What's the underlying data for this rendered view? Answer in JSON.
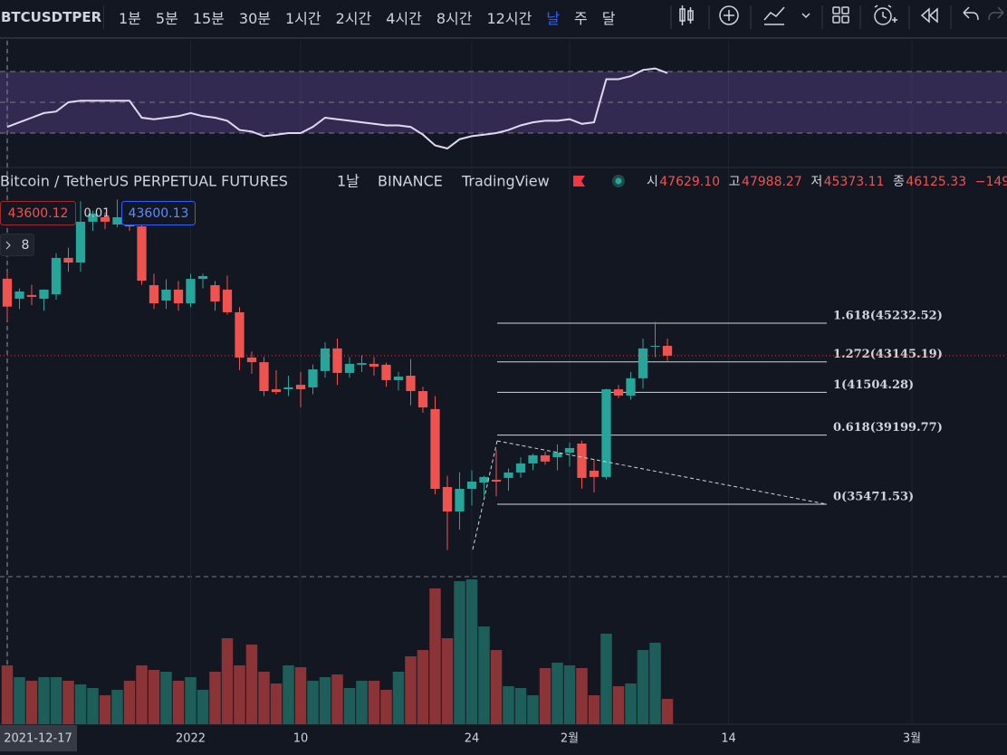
{
  "toolbar": {
    "symbol": "BTCUSDTPER",
    "intervals": [
      "1분",
      "5분",
      "15분",
      "30분",
      "1시간",
      "2시간",
      "4시간",
      "8시간",
      "12시간",
      "날",
      "주",
      "달"
    ],
    "active": "날"
  },
  "legend": {
    "name": "Bitcoin / TetherUS PERPETUAL FUTURES",
    "interval": "1날",
    "exchange": "BINANCE",
    "source": "TradingView",
    "ohlc": [
      {
        "label": "시",
        "value": "47629.10"
      },
      {
        "label": "고",
        "value": "47988.27"
      },
      {
        "label": "저",
        "value": "45373.11"
      },
      {
        "label": "종",
        "value": "46125.33"
      }
    ],
    "change": "−149"
  },
  "order_panel": {
    "sell": "43600.12",
    "spread": "0.01",
    "buy": "43600.13",
    "lines": "8"
  },
  "chart_data": {
    "type": "candlestick",
    "up_color": "#26a69a",
    "down_color": "#ef5350",
    "x": [
      "2021-12-17",
      "2021-12-18",
      "2021-12-19",
      "2021-12-20",
      "2021-12-21",
      "2021-12-22",
      "2021-12-23",
      "2021-12-24",
      "2021-12-25",
      "2021-12-26",
      "2021-12-27",
      "2021-12-28",
      "2021-12-29",
      "2021-12-30",
      "2021-12-31",
      "2022-01-01",
      "2022-01-02",
      "2022-01-03",
      "2022-01-04",
      "2022-01-05",
      "2022-01-06",
      "2022-01-07",
      "2022-01-08",
      "2022-01-09",
      "2022-01-10",
      "2022-01-11",
      "2022-01-12",
      "2022-01-13",
      "2022-01-14",
      "2022-01-15",
      "2022-01-16",
      "2022-01-17",
      "2022-01-18",
      "2022-01-19",
      "2022-01-20",
      "2022-01-21",
      "2022-01-22",
      "2022-01-23",
      "2022-01-24",
      "2022-01-25",
      "2022-01-26",
      "2022-01-27",
      "2022-01-28",
      "2022-01-29",
      "2022-01-30",
      "2022-01-31",
      "2022-02-01",
      "2022-02-02",
      "2022-02-03",
      "2022-02-04",
      "2022-02-05",
      "2022-02-06",
      "2022-02-07",
      "2022-02-08",
      "2022-02-09"
    ],
    "open": [
      47629,
      46550,
      46750,
      46550,
      46790,
      48750,
      48500,
      50700,
      50940,
      50550,
      50940,
      50450,
      47280,
      46450,
      47040,
      46300,
      47620,
      47280,
      47040,
      45820,
      43380,
      43130,
      41670,
      41670,
      41910,
      41770,
      42650,
      43870,
      42550,
      42990,
      43040,
      42990,
      42160,
      42400,
      41570,
      40600,
      36400,
      35080,
      36300,
      36640,
      36790,
      36890,
      37180,
      37670,
      38110,
      38010,
      38250,
      38740,
      37280,
      36940,
      41670,
      41330,
      42260,
      43960,
      44010
    ],
    "high": [
      47988,
      47100,
      47300,
      47050,
      49000,
      49300,
      51800,
      51300,
      51200,
      51900,
      51300,
      50500,
      47900,
      47600,
      47500,
      47900,
      47900,
      47500,
      47800,
      46100,
      43700,
      43400,
      42700,
      42400,
      42600,
      43000,
      44200,
      44400,
      43400,
      43500,
      43400,
      43100,
      42600,
      43300,
      41800,
      41300,
      37000,
      37200,
      37300,
      37000,
      38400,
      37400,
      38000,
      38200,
      38300,
      38700,
      38800,
      38900,
      37900,
      41700,
      41900,
      42600,
      44400,
      45300,
      44400
    ],
    "low": [
      45373,
      46000,
      46200,
      45900,
      46500,
      48000,
      48000,
      50200,
      50300,
      50400,
      50200,
      47300,
      46000,
      46000,
      45900,
      46100,
      47100,
      45900,
      45700,
      42700,
      42500,
      41300,
      41400,
      41300,
      40700,
      41400,
      42300,
      41900,
      42300,
      42600,
      42400,
      41800,
      41600,
      40800,
      40400,
      36000,
      33000,
      34100,
      35400,
      35900,
      35900,
      36200,
      36900,
      37300,
      37600,
      37300,
      37500,
      36300,
      36100,
      36800,
      41200,
      41100,
      41700,
      43400,
      43200
    ],
    "close": [
      46125,
      46940,
      46650,
      47040,
      48750,
      48500,
      50700,
      51140,
      50700,
      50940,
      50450,
      47520,
      46300,
      47040,
      46300,
      47620,
      47770,
      46400,
      45820,
      43380,
      43130,
      41570,
      41520,
      41770,
      41670,
      42740,
      43870,
      42550,
      43040,
      43080,
      42890,
      42160,
      42350,
      41570,
      40690,
      36300,
      35080,
      36300,
      36690,
      36940,
      36690,
      37180,
      37670,
      38110,
      37770,
      38250,
      38500,
      36890,
      36940,
      41670,
      41330,
      42260,
      43870,
      44010,
      43480
    ],
    "volume": [
      65,
      52,
      48,
      52,
      52,
      48,
      44,
      40,
      32,
      38,
      48,
      65,
      60,
      58,
      48,
      52,
      38,
      58,
      95,
      65,
      88,
      58,
      45,
      65,
      63,
      48,
      52,
      55,
      40,
      48,
      48,
      38,
      58,
      75,
      82,
      150,
      95,
      158,
      160,
      108,
      82,
      42,
      40,
      32,
      62,
      68,
      65,
      62,
      32,
      100,
      42,
      45,
      82,
      90,
      28
    ],
    "xlim": [
      "2021-12-17",
      "2022-03-09"
    ],
    "ylim": [
      31567,
      53625
    ],
    "volume_ylim": [
      0,
      163
    ],
    "rsi": [
      34,
      37,
      40,
      43,
      44,
      50,
      51,
      51,
      51,
      51,
      51,
      40,
      39,
      40,
      41,
      43,
      41,
      40,
      38,
      32,
      31,
      28,
      29,
      30,
      30,
      34,
      40,
      39,
      38,
      37,
      36,
      35,
      35,
      34,
      29,
      22,
      20,
      26,
      28,
      29,
      30,
      32,
      35,
      37,
      38,
      38,
      39,
      36,
      37,
      65,
      65,
      67,
      71,
      72,
      69
    ],
    "rsi_ylim": [
      10,
      90
    ],
    "rsi_bands": [
      70,
      50,
      30
    ],
    "xticks": [
      {
        "value": "2021-12-17",
        "label": "2021-12-17"
      },
      {
        "value": "2022-01-01",
        "label": "2022"
      },
      {
        "value": "2022-01-10",
        "label": "10"
      },
      {
        "value": "2022-01-24",
        "label": "24"
      },
      {
        "value": "2022-02-01",
        "label": "2월"
      },
      {
        "value": "2022-02-14",
        "label": "14"
      },
      {
        "value": "2022-03-01",
        "label": "3월"
      }
    ],
    "crosshair": "2021-12-17",
    "fib_levels": [
      {
        "label": "1.618(45232.52)",
        "value": 45232.52
      },
      {
        "label": "1.272(43145.19)",
        "value": 43145.19
      },
      {
        "label": "1(41504.28)",
        "value": 41504.28
      },
      {
        "label": "0.618(39199.77)",
        "value": 39199.77
      },
      {
        "label": "0(35471.53)",
        "value": 35471.53
      }
    ]
  }
}
